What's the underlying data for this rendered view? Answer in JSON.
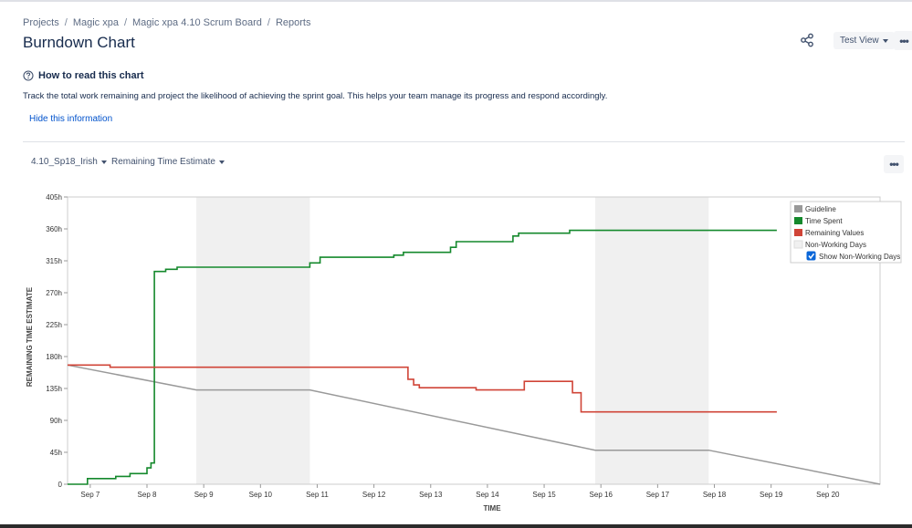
{
  "breadcrumb": [
    "Projects",
    "Magic xpa",
    "Magic xpa 4.10 Scrum Board",
    "Reports"
  ],
  "page_title": "Burndown Chart",
  "header": {
    "view_label": "Test View"
  },
  "help": {
    "title": "How to read this chart",
    "description": "Track the total work remaining and project the likelihood of achieving the sprint goal. This helps your team manage its progress and respond accordingly.",
    "hide_label": "Hide this information"
  },
  "controls": {
    "sprint": "4.10_Sp18_Irish",
    "estimate": "Remaining Time Estimate"
  },
  "colors": {
    "guideline": "#999999",
    "time_spent": "#14892c",
    "remaining": "#d04437",
    "non_working": "#f0f0f0",
    "link": "#0052cc"
  },
  "chart_data": {
    "type": "line",
    "xlabel": "TIME",
    "ylabel": "REMAINING TIME ESTIMATE",
    "ylim": [
      0,
      405
    ],
    "y_ticks": [
      "0",
      "45h",
      "90h",
      "135h",
      "180h",
      "225h",
      "270h",
      "315h",
      "360h",
      "405h"
    ],
    "y_tick_values": [
      0,
      45,
      90,
      135,
      180,
      225,
      270,
      315,
      360,
      405
    ],
    "xlim": [
      -0.4,
      13.92
    ],
    "x_ticks": [
      "Sep 7",
      "Sep 8",
      "Sep 9",
      "Sep 10",
      "Sep 11",
      "Sep 12",
      "Sep 13",
      "Sep 14",
      "Sep 15",
      "Sep 16",
      "Sep 17",
      "Sep 18",
      "Sep 19",
      "Sep 20"
    ],
    "non_working_periods": [
      [
        1.87,
        3.87
      ],
      [
        8.9,
        10.9
      ]
    ],
    "legend": {
      "position": "top-right",
      "items": [
        "Guideline",
        "Time Spent",
        "Remaining Values",
        "Non-Working Days"
      ],
      "checkbox_label": "Show Non-Working Days",
      "checkbox_checked": true
    },
    "series": [
      {
        "name": "Guideline",
        "step": false,
        "points": [
          [
            -0.4,
            168
          ],
          [
            1.87,
            133
          ],
          [
            3.87,
            133
          ],
          [
            8.9,
            48
          ],
          [
            10.9,
            48
          ],
          [
            13.92,
            0
          ]
        ]
      },
      {
        "name": "Time Spent",
        "step": true,
        "points": [
          [
            -0.4,
            0
          ],
          [
            -0.05,
            0
          ],
          [
            -0.05,
            8
          ],
          [
            0.45,
            8
          ],
          [
            0.45,
            11
          ],
          [
            0.7,
            11
          ],
          [
            0.7,
            15
          ],
          [
            1.0,
            15
          ],
          [
            1.0,
            23
          ],
          [
            1.07,
            23
          ],
          [
            1.07,
            30
          ],
          [
            1.13,
            30
          ],
          [
            1.13,
            300
          ],
          [
            1.33,
            300
          ],
          [
            1.33,
            303
          ],
          [
            1.53,
            303
          ],
          [
            1.53,
            306
          ],
          [
            3.87,
            306
          ],
          [
            3.87,
            312
          ],
          [
            4.05,
            312
          ],
          [
            4.05,
            320
          ],
          [
            5.35,
            320
          ],
          [
            5.35,
            323
          ],
          [
            5.52,
            323
          ],
          [
            5.52,
            327
          ],
          [
            6.35,
            327
          ],
          [
            6.35,
            334
          ],
          [
            6.45,
            334
          ],
          [
            6.45,
            342
          ],
          [
            7.45,
            342
          ],
          [
            7.45,
            350
          ],
          [
            7.55,
            350
          ],
          [
            7.55,
            354
          ],
          [
            8.45,
            354
          ],
          [
            8.45,
            358
          ],
          [
            12.1,
            358
          ]
        ]
      },
      {
        "name": "Remaining Values",
        "step": true,
        "points": [
          [
            -0.4,
            168
          ],
          [
            0.35,
            168
          ],
          [
            0.35,
            165
          ],
          [
            5.6,
            165
          ],
          [
            5.6,
            148
          ],
          [
            5.7,
            148
          ],
          [
            5.7,
            140
          ],
          [
            5.8,
            140
          ],
          [
            5.8,
            136
          ],
          [
            6.8,
            136
          ],
          [
            6.8,
            133
          ],
          [
            7.65,
            133
          ],
          [
            7.65,
            145
          ],
          [
            8.5,
            145
          ],
          [
            8.5,
            129
          ],
          [
            8.65,
            129
          ],
          [
            8.65,
            102
          ],
          [
            12.1,
            102
          ]
        ]
      }
    ]
  }
}
